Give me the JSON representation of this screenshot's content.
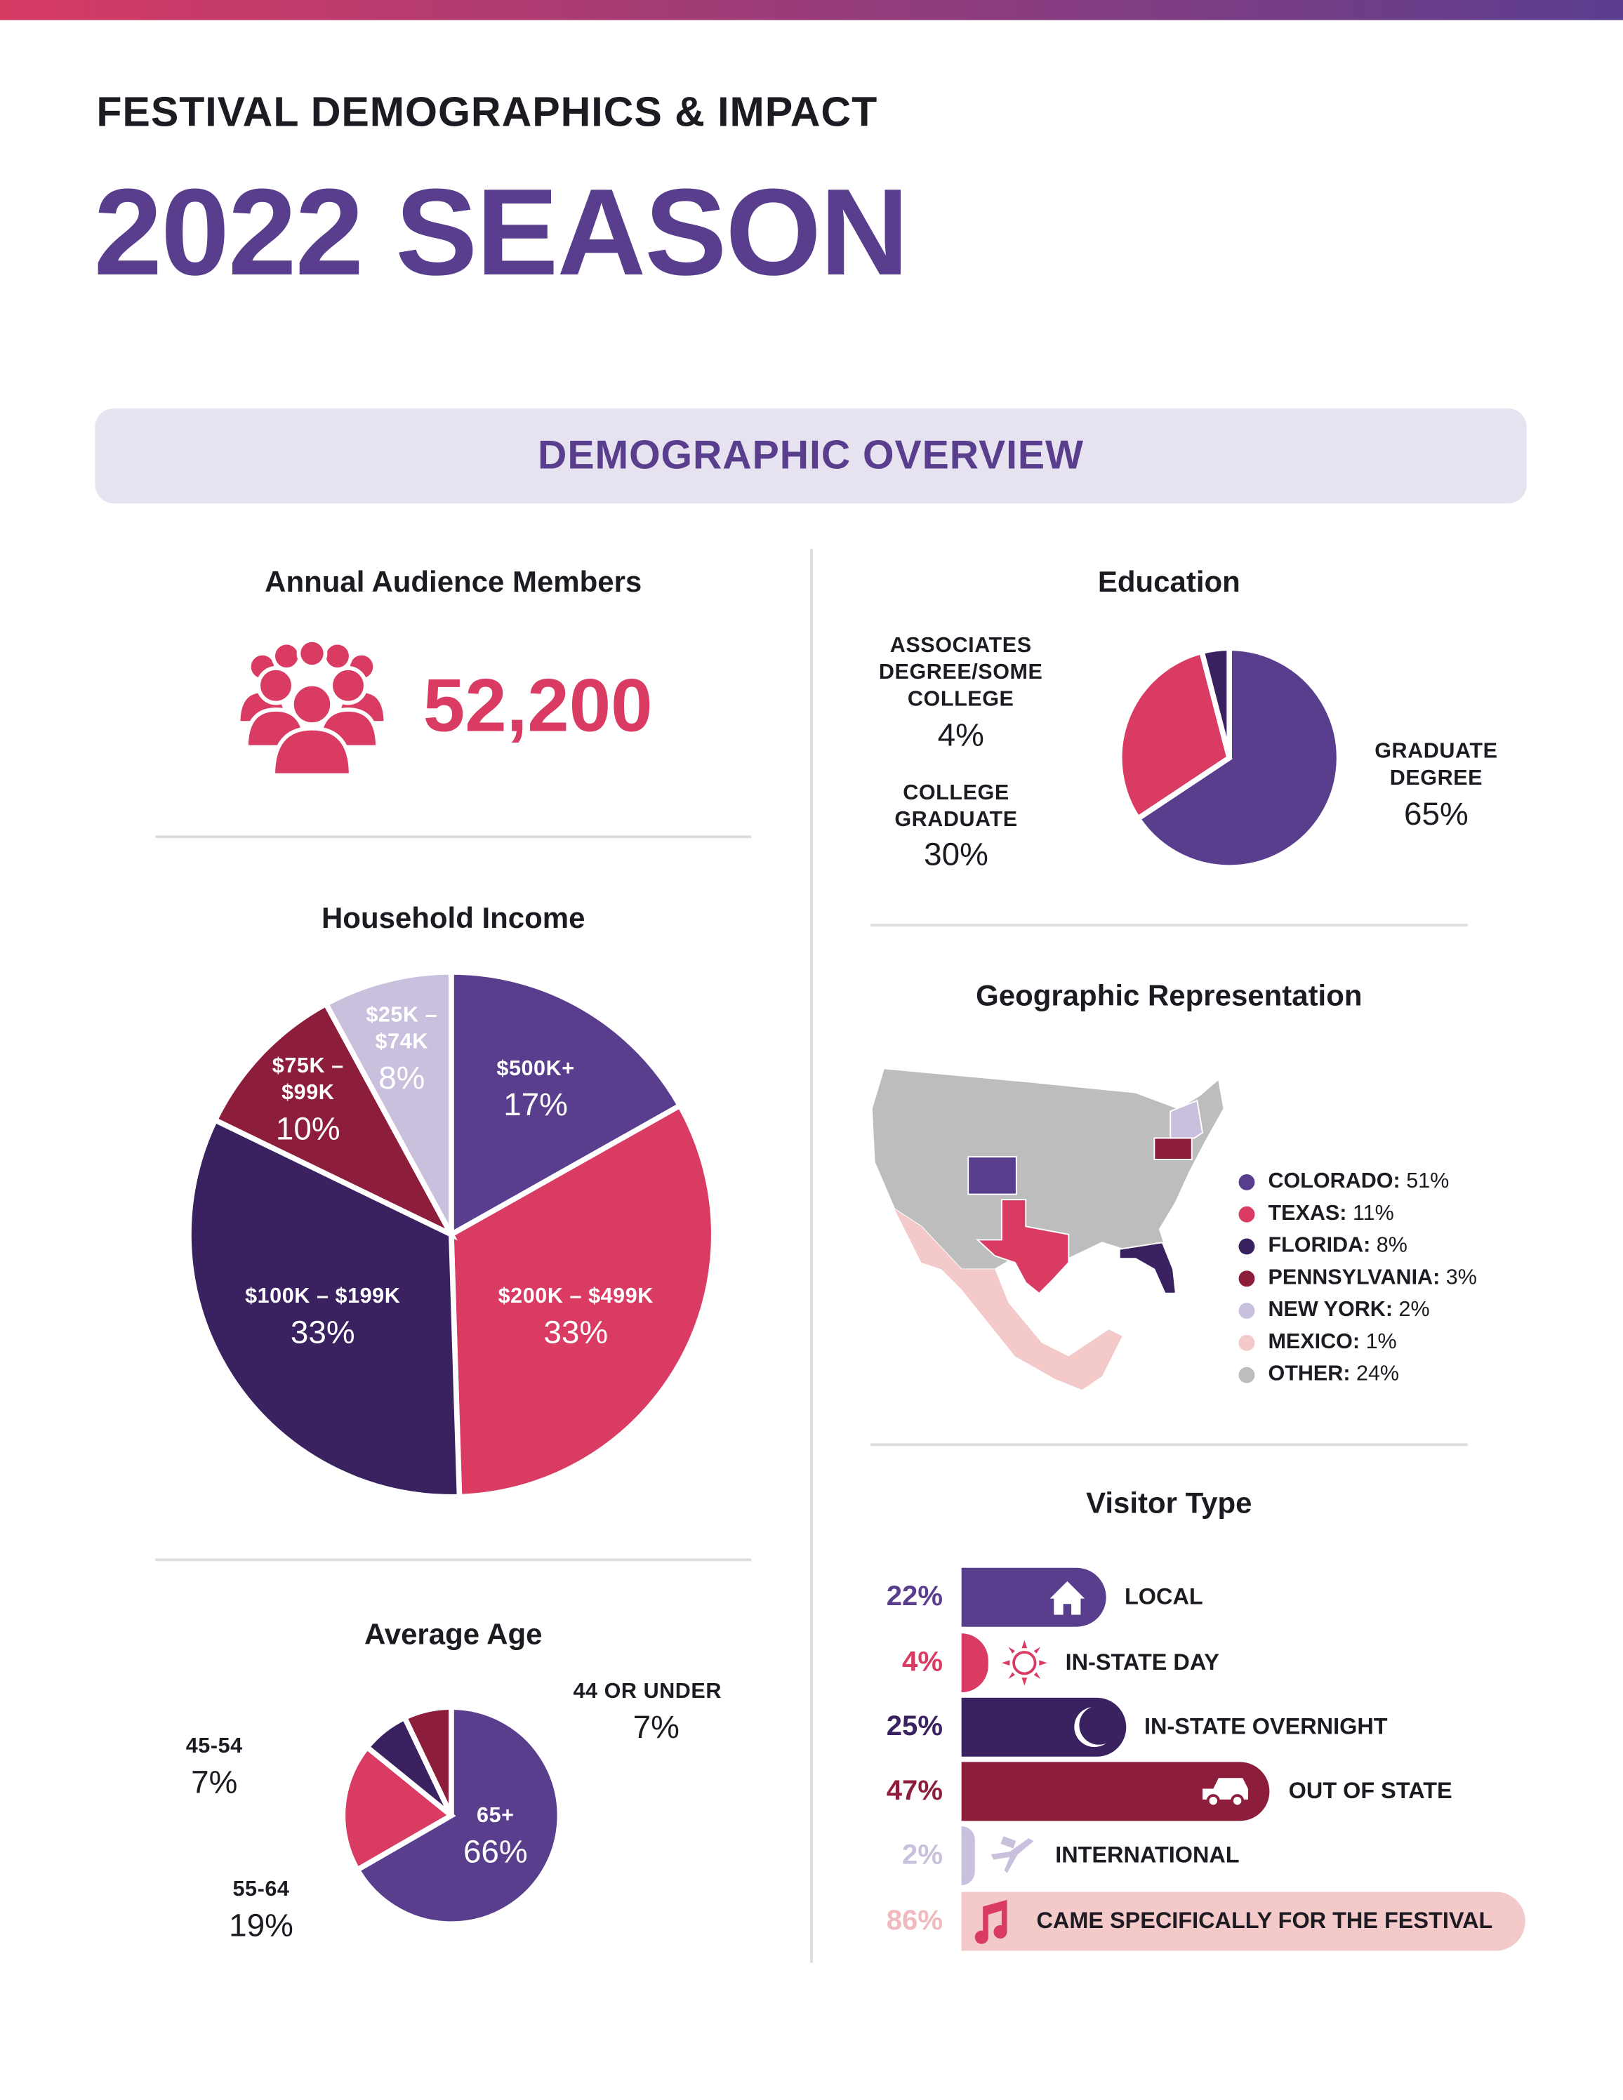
{
  "header": {
    "kicker": "FESTIVAL DEMOGRAPHICS & IMPACT",
    "title": "2022 SEASON"
  },
  "section_title": "DEMOGRAPHIC OVERVIEW",
  "colors": {
    "purple": "#5a3e8e",
    "pink": "#d93b63",
    "dark_purple": "#3a2160",
    "maroon": "#8c1e3c",
    "lavender": "#c9c0dd",
    "light_pink": "#f3c9c9",
    "gray": "#bdbdbd"
  },
  "audience": {
    "title": "Annual Audience Members",
    "value": "52,200",
    "icon": "crowd-icon"
  },
  "chart_data": [
    {
      "type": "pie",
      "title": "Household Income",
      "slices": [
        {
          "label": "$500K+",
          "value": 17,
          "pct": "17%",
          "color": "#5a3e8e"
        },
        {
          "label": "$200K – $499K",
          "value": 33,
          "pct": "33%",
          "color": "#d93b63"
        },
        {
          "label": "$100K – $199K",
          "value": 33,
          "pct": "33%",
          "color": "#3a2160"
        },
        {
          "label": "$75K – $99K",
          "value": 10,
          "pct": "10%",
          "color": "#8c1e3c"
        },
        {
          "label": "$25K – $74K",
          "value": 8,
          "pct": "8%",
          "color": "#c9c0dd"
        }
      ]
    },
    {
      "type": "pie",
      "title": "Education",
      "slices": [
        {
          "label": "GRADUATE DEGREE",
          "value": 65,
          "pct": "65%",
          "color": "#5a3e8e"
        },
        {
          "label": "COLLEGE GRADUATE",
          "value": 30,
          "pct": "30%",
          "color": "#d93b63"
        },
        {
          "label": "ASSOCIATES DEGREE/SOME COLLEGE",
          "value": 4,
          "pct": "4%",
          "color": "#3a2160"
        }
      ]
    },
    {
      "type": "pie",
      "title": "Average Age",
      "slices": [
        {
          "label": "65+",
          "value": 66,
          "pct": "66%",
          "color": "#5a3e8e"
        },
        {
          "label": "55-64",
          "value": 19,
          "pct": "19%",
          "color": "#d93b63"
        },
        {
          "label": "45-54",
          "value": 7,
          "pct": "7%",
          "color": "#3a2160"
        },
        {
          "label": "44 OR UNDER",
          "value": 7,
          "pct": "7%",
          "color": "#8c1e3c"
        }
      ]
    },
    {
      "type": "map",
      "title": "Geographic Representation",
      "legend": [
        {
          "label": "COLORADO:",
          "pct": "51%",
          "value": 51,
          "color": "#5a3e8e"
        },
        {
          "label": "TEXAS:",
          "pct": "11%",
          "value": 11,
          "color": "#d93b63"
        },
        {
          "label": "FLORIDA:",
          "pct": "8%",
          "value": 8,
          "color": "#3a2160"
        },
        {
          "label": "PENNSYLVANIA:",
          "pct": "3%",
          "value": 3,
          "color": "#8c1e3c"
        },
        {
          "label": "NEW YORK:",
          "pct": "2%",
          "value": 2,
          "color": "#c9c0dd"
        },
        {
          "label": "MEXICO:",
          "pct": "1%",
          "value": 1,
          "color": "#f3c9c9"
        },
        {
          "label": "OTHER:",
          "pct": "24%",
          "value": 24,
          "color": "#bdbdbd"
        }
      ]
    },
    {
      "type": "bar",
      "title": "Visitor Type",
      "rows": [
        {
          "label": "LOCAL",
          "value": 22,
          "pct": "22%",
          "color": "#5a3e8e",
          "icon": "house-icon"
        },
        {
          "label": "IN-STATE DAY",
          "value": 4,
          "pct": "4%",
          "color": "#d93b63",
          "icon": "sun-icon"
        },
        {
          "label": "IN-STATE OVERNIGHT",
          "value": 25,
          "pct": "25%",
          "color": "#3a2160",
          "icon": "moon-icon"
        },
        {
          "label": "OUT OF STATE",
          "value": 47,
          "pct": "47%",
          "color": "#8c1e3c",
          "icon": "car-icon"
        },
        {
          "label": "INTERNATIONAL",
          "value": 2,
          "pct": "2%",
          "color": "#c9c0dd",
          "icon": "airplane-icon"
        },
        {
          "label": "CAME SPECIFICALLY FOR THE FESTIVAL",
          "value": 86,
          "pct": "86%",
          "color": "#f3c9c9",
          "icon": "music-note-icon"
        }
      ]
    }
  ]
}
